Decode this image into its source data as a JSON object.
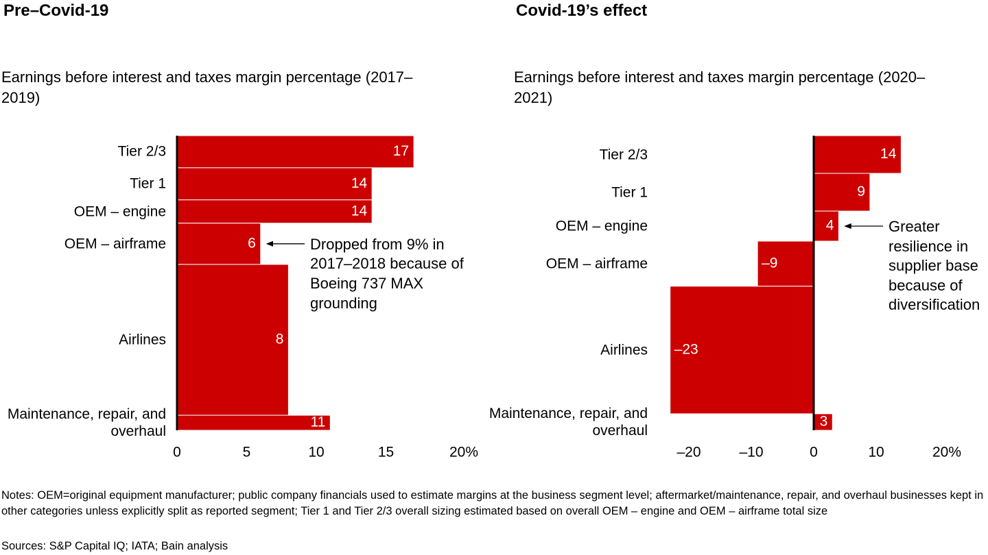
{
  "chart_data": [
    {
      "type": "bar",
      "orientation": "horizontal",
      "title": "Pre–Covid-19",
      "subtitle": "Earnings before interest and taxes margin percentage (2017–2019)",
      "categories": [
        "Tier 2/3",
        "Tier 1",
        "OEM – engine",
        "OEM – airframe",
        "Airlines",
        "Maintenance, repair, and overhaul"
      ],
      "values": [
        17,
        14,
        14,
        6,
        8,
        11
      ],
      "sizes": [
        10.9,
        10.9,
        7.9,
        14,
        51.2,
        5.1
      ],
      "color": "#cc0000",
      "xlim": [
        0,
        20
      ],
      "xticks": [
        0,
        5,
        10,
        15,
        {
          "value": 20,
          "label": "20%"
        }
      ],
      "annotation": "Dropped from 9% in 2017–2018 because of Boeing 737 MAX grounding"
    },
    {
      "type": "bar",
      "orientation": "horizontal",
      "title": "Covid-19’s effect",
      "subtitle": "Earnings before interest and taxes margin percentage (2020–2021)",
      "categories": [
        "Tier 2/3",
        "Tier 1",
        "OEM – engine",
        "OEM – airframe",
        "Airlines",
        "Maintenance, repair, and overhaul"
      ],
      "values": [
        14,
        9,
        4,
        -9,
        -23,
        3
      ],
      "value_labels": [
        "14",
        "9",
        "4",
        "–9",
        "–23",
        "3"
      ],
      "sizes": [
        12.8,
        12.8,
        10.2,
        15.3,
        43.3,
        5.6
      ],
      "color": "#cc0000",
      "xlim": [
        -25,
        20
      ],
      "xticks": [
        {
          "value": -20,
          "label": "–20"
        },
        {
          "value": -10,
          "label": "–10"
        },
        0,
        10,
        {
          "value": 20,
          "label": "20%"
        }
      ],
      "annotation": "Greater resilience in supplier base because of diversification"
    }
  ],
  "notes": "Notes: OEM=original equipment manufacturer; public company financials used to estimate margins at the business segment level; aftermarket/maintenance, repair, and overhaul businesses kept in other categories unless explicitly split as reported segment; Tier 1 and Tier 2/3 overall sizing estimated based on overall OEM – engine and OEM – airframe total size",
  "sources": "Sources: S&P Capital IQ; IATA; Bain analysis"
}
